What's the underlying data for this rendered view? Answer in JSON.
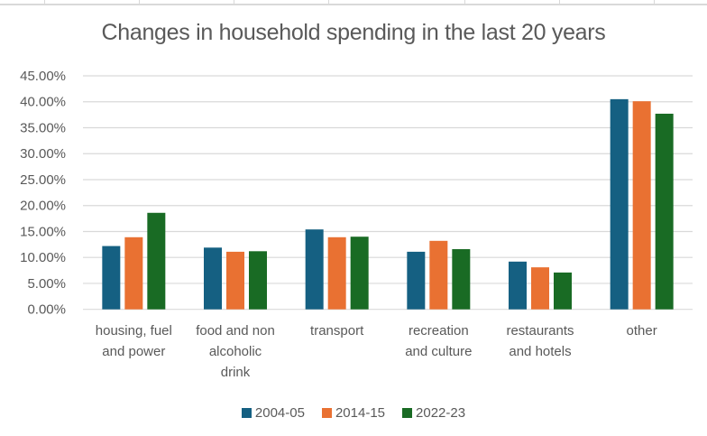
{
  "chart_data": {
    "type": "bar",
    "title": "Changes in household spending in the last 20 years",
    "xlabel": "",
    "ylabel": "",
    "ylim": [
      0,
      0.45
    ],
    "yticks": [
      0,
      0.05,
      0.1,
      0.15,
      0.2,
      0.25,
      0.3,
      0.35,
      0.4,
      0.45
    ],
    "ytick_labels": [
      "0.00%",
      "5.00%",
      "10.00%",
      "15.00%",
      "20.00%",
      "25.00%",
      "30.00%",
      "35.00%",
      "40.00%",
      "45.00%"
    ],
    "grid": true,
    "legend_position": "bottom",
    "categories": [
      [
        "housing, fuel",
        "and power"
      ],
      [
        "food and non",
        "alcoholic",
        "drink"
      ],
      [
        "transport"
      ],
      [
        "recreation",
        "and culture"
      ],
      [
        "restaurants",
        "and hotels"
      ],
      [
        "other"
      ]
    ],
    "series": [
      {
        "name": "2004-05",
        "color": "#156082",
        "values": [
          0.122,
          0.119,
          0.154,
          0.111,
          0.092,
          0.405
        ]
      },
      {
        "name": "2014-15",
        "color": "#e97132",
        "values": [
          0.139,
          0.111,
          0.139,
          0.132,
          0.081,
          0.401
        ]
      },
      {
        "name": "2022-23",
        "color": "#196b24",
        "values": [
          0.186,
          0.112,
          0.14,
          0.116,
          0.071,
          0.377
        ]
      }
    ]
  }
}
